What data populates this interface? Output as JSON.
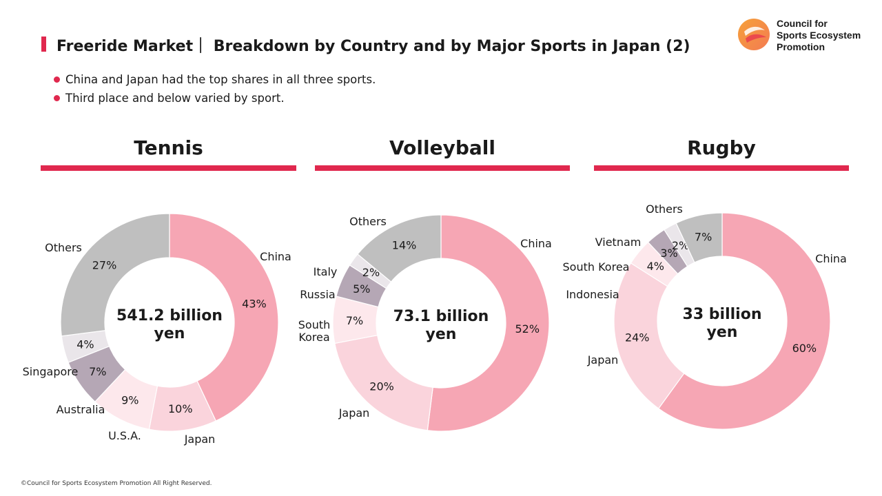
{
  "header": {
    "title": "Freeride Market｜ Breakdown by Country and by Major Sports in Japan (2)"
  },
  "logo": {
    "lines": [
      "Council for",
      "Sports Ecosystem",
      "Promotion"
    ],
    "icon": "circle-logo-icon"
  },
  "bullets": [
    "China and Japan had the top shares in all three sports.",
    "Third place and below varied by sport."
  ],
  "colors": {
    "accent": "#e0284e",
    "china": "#f6a6b4",
    "japan": "#fad4dc",
    "light": "#fde8ec",
    "purple": "#b5a7b5",
    "others": "#bfbfbf",
    "pale": "#eae6ea"
  },
  "chart_data": [
    {
      "type": "pie",
      "title": "Tennis",
      "center_text": [
        "541.2 billion",
        "yen"
      ],
      "slices": [
        {
          "label": "China",
          "value": 43,
          "value_label": "43%",
          "color": "#f6a6b4"
        },
        {
          "label": "Japan",
          "value": 10,
          "value_label": "10%",
          "color": "#fad4dc"
        },
        {
          "label": "U.S.A.",
          "value": 9,
          "value_label": "9%",
          "color": "#fde8ec"
        },
        {
          "label": "Australia",
          "value": 7,
          "value_label": "7%",
          "color": "#b5a7b5"
        },
        {
          "label": "Singapore",
          "value": 4,
          "value_label": "4%",
          "color": "#eae6ea"
        },
        {
          "label": "Others",
          "value": 27,
          "value_label": "27%",
          "color": "#bfbfbf"
        }
      ]
    },
    {
      "type": "pie",
      "title": "Volleyball",
      "center_text": [
        "73.1 billion",
        "yen"
      ],
      "slices": [
        {
          "label": "China",
          "value": 52,
          "value_label": "52%",
          "color": "#f6a6b4"
        },
        {
          "label": "Japan",
          "value": 20,
          "value_label": "20%",
          "color": "#fad4dc"
        },
        {
          "label": "South\nKorea",
          "value": 7,
          "value_label": "7%",
          "color": "#fde8ec"
        },
        {
          "label": "Russia",
          "value": 5,
          "value_label": "5%",
          "color": "#b5a7b5"
        },
        {
          "label": "Italy",
          "value": 2,
          "value_label": "2%",
          "color": "#eae6ea"
        },
        {
          "label": "Others",
          "value": 14,
          "value_label": "14%",
          "color": "#bfbfbf"
        }
      ]
    },
    {
      "type": "pie",
      "title": "Rugby",
      "center_text": [
        "33 billion",
        "yen"
      ],
      "slices": [
        {
          "label": "China",
          "value": 60,
          "value_label": "60%",
          "color": "#f6a6b4"
        },
        {
          "label": "Japan",
          "value": 24,
          "value_label": "24%",
          "color": "#fad4dc"
        },
        {
          "label": "Indonesia",
          "value": 4,
          "value_label": "4%",
          "color": "#fde8ec"
        },
        {
          "label": "South Korea",
          "value": 3,
          "value_label": "3%",
          "color": "#b5a7b5"
        },
        {
          "label": "Vietnam",
          "value": 2,
          "value_label": "2%",
          "color": "#eae6ea"
        },
        {
          "label": "Others",
          "value": 7,
          "value_label": "7%",
          "color": "#bfbfbf"
        }
      ]
    }
  ],
  "footer": "©Council for Sports Ecosystem Promotion All Right Reserved."
}
